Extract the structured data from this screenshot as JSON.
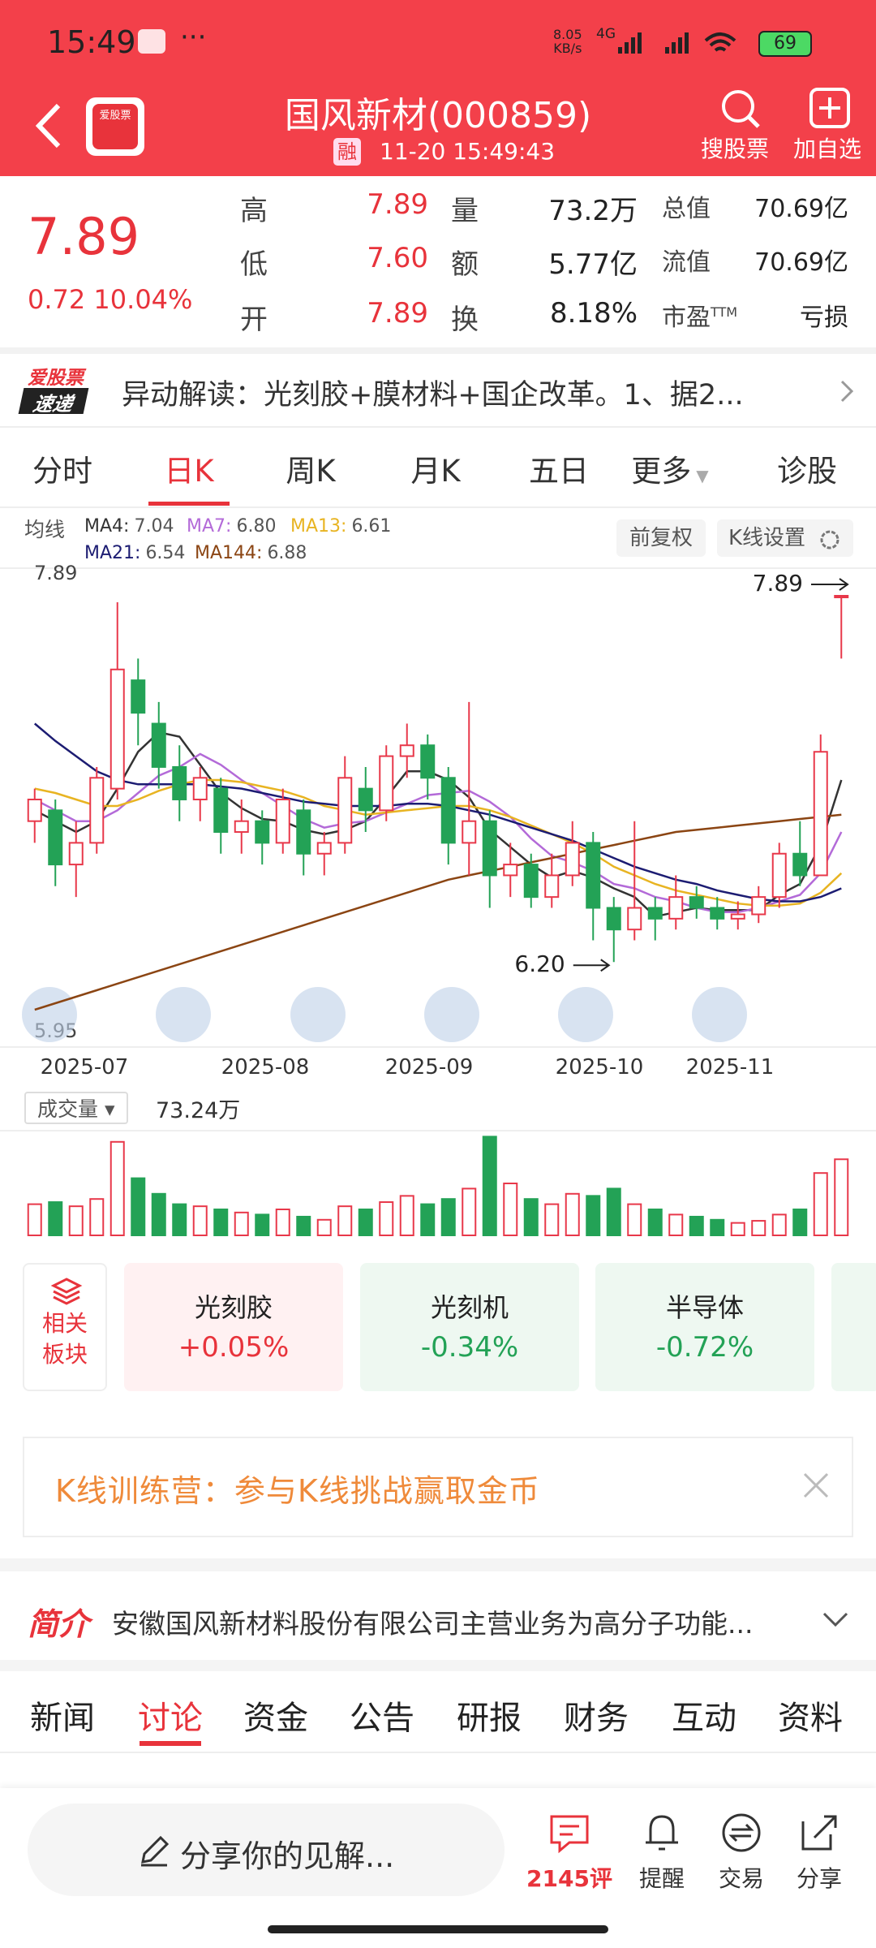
{
  "status_bar": {
    "time": "15:49",
    "speed": "8.05",
    "speed_unit": "KB/s",
    "network": "4G",
    "battery": "69"
  },
  "header": {
    "title": "国风新材(000859)",
    "badge": "融",
    "timestamp": "11-20 15:49:43",
    "logo": "爱股票",
    "actions": [
      "搜股票",
      "加自选"
    ]
  },
  "quote": {
    "price": "7.89",
    "change": "0.72",
    "change_pct": "10.04%",
    "stats": [
      [
        "高",
        "7.89",
        "量",
        "73.2万",
        "总值",
        "70.69亿"
      ],
      [
        "低",
        "7.60",
        "额",
        "5.77亿",
        "流值",
        "70.69亿"
      ],
      [
        "开",
        "7.89",
        "换",
        "8.18%",
        "市盈",
        "亏损"
      ]
    ],
    "pe_suffix": "TTM"
  },
  "news": {
    "badge_top": "爱股票",
    "badge_bottom": "速递",
    "text": "异动解读：光刻胶+膜材料+国企改革。1、据2..."
  },
  "period_tabs": {
    "items": [
      "分时",
      "日K",
      "周K",
      "月K",
      "五日",
      "更多",
      "诊股"
    ],
    "active": 1
  },
  "kline": {
    "legend_title": "均线",
    "buttons": [
      "前复权",
      "K线设置"
    ],
    "ylim": [
      5.95,
      7.89
    ],
    "yticks": [
      5.95,
      7.89
    ],
    "annotations": [
      7.89,
      {
        "value": 6.2,
        "label": "6.20"
      }
    ],
    "dates": [
      "2025-07",
      "2025-08",
      "2025-09",
      "2025-10",
      "2025-11"
    ],
    "candles": [
      [
        6.85,
        6.95,
        6.75,
        7.0
      ],
      [
        6.9,
        6.65,
        6.55,
        6.95
      ],
      [
        6.65,
        6.75,
        6.5,
        6.85
      ],
      [
        6.75,
        7.05,
        6.7,
        7.1
      ],
      [
        7.0,
        7.55,
        6.95,
        7.86
      ],
      [
        7.5,
        7.35,
        7.2,
        7.6
      ],
      [
        7.3,
        7.1,
        7.0,
        7.4
      ],
      [
        7.1,
        6.95,
        6.85,
        7.2
      ],
      [
        6.95,
        7.05,
        6.85,
        7.1
      ],
      [
        7.0,
        6.8,
        6.7,
        7.05
      ],
      [
        6.8,
        6.85,
        6.7,
        6.95
      ],
      [
        6.85,
        6.75,
        6.65,
        6.9
      ],
      [
        6.75,
        6.95,
        6.7,
        7.0
      ],
      [
        6.9,
        6.7,
        6.6,
        6.95
      ],
      [
        6.7,
        6.75,
        6.6,
        6.8
      ],
      [
        6.75,
        7.05,
        6.7,
        7.15
      ],
      [
        7.0,
        6.9,
        6.8,
        7.1
      ],
      [
        6.9,
        7.15,
        6.85,
        7.2
      ],
      [
        7.15,
        7.2,
        7.05,
        7.3
      ],
      [
        7.2,
        7.05,
        6.95,
        7.25
      ],
      [
        7.05,
        6.75,
        6.65,
        7.1
      ],
      [
        6.75,
        6.85,
        6.6,
        7.4
      ],
      [
        6.85,
        6.6,
        6.45,
        6.9
      ],
      [
        6.6,
        6.65,
        6.5,
        6.75
      ],
      [
        6.65,
        6.5,
        6.45,
        6.7
      ],
      [
        6.5,
        6.6,
        6.45,
        6.7
      ],
      [
        6.6,
        6.75,
        6.55,
        6.85
      ],
      [
        6.75,
        6.45,
        6.3,
        6.8
      ],
      [
        6.45,
        6.35,
        6.2,
        6.5
      ],
      [
        6.35,
        6.45,
        6.3,
        6.85
      ],
      [
        6.45,
        6.4,
        6.3,
        6.5
      ],
      [
        6.4,
        6.5,
        6.35,
        6.6
      ],
      [
        6.5,
        6.45,
        6.4,
        6.55
      ],
      [
        6.45,
        6.4,
        6.35,
        6.5
      ],
      [
        6.4,
        6.42,
        6.35,
        6.48
      ],
      [
        6.42,
        6.5,
        6.38,
        6.55
      ],
      [
        6.5,
        6.7,
        6.45,
        6.75
      ],
      [
        6.7,
        6.6,
        6.55,
        6.85
      ],
      [
        6.6,
        7.17,
        6.6,
        7.25
      ],
      [
        7.89,
        7.89,
        7.6,
        7.89
      ]
    ],
    "ma": [
      {
        "name": "MA4:",
        "current": 7.04,
        "color": "#333333",
        "values": [
          6.9,
          6.85,
          6.8,
          6.85,
          7.0,
          7.17,
          7.26,
          7.24,
          7.11,
          6.98,
          6.91,
          6.86,
          6.85,
          6.81,
          6.79,
          6.81,
          6.85,
          6.96,
          7.08,
          7.08,
          7.04,
          6.96,
          6.81,
          6.73,
          6.65,
          6.59,
          6.62,
          6.59,
          6.54,
          6.5,
          6.41,
          6.43,
          6.45,
          6.44,
          6.44,
          6.44,
          6.51,
          6.56,
          6.74,
          7.04
        ]
      },
      {
        "name": "MA7:",
        "current": 6.8,
        "label": "6.80",
        "color": "#b36ad8",
        "values": [
          6.95,
          6.9,
          6.85,
          6.85,
          6.9,
          6.98,
          7.06,
          7.1,
          7.16,
          7.11,
          7.04,
          6.98,
          6.92,
          6.86,
          6.82,
          6.84,
          6.85,
          6.89,
          6.93,
          6.97,
          6.98,
          6.99,
          6.94,
          6.87,
          6.77,
          6.69,
          6.66,
          6.62,
          6.56,
          6.54,
          6.5,
          6.48,
          6.45,
          6.43,
          6.43,
          6.45,
          6.48,
          6.51,
          6.61,
          6.8
        ]
      },
      {
        "name": "MA13:",
        "current": 6.61,
        "color": "#e8b422",
        "values": [
          7.0,
          6.98,
          6.95,
          6.92,
          6.92,
          6.95,
          6.99,
          7.02,
          7.04,
          7.04,
          7.03,
          7.01,
          6.99,
          6.96,
          6.92,
          6.9,
          6.88,
          6.89,
          6.9,
          6.91,
          6.92,
          6.92,
          6.9,
          6.87,
          6.83,
          6.79,
          6.75,
          6.7,
          6.64,
          6.6,
          6.56,
          6.53,
          6.51,
          6.49,
          6.47,
          6.46,
          6.46,
          6.47,
          6.52,
          6.61
        ]
      },
      {
        "name": "MA21:",
        "current": 6.54,
        "color": "#1c1c72",
        "values": [
          7.3,
          7.22,
          7.15,
          7.08,
          7.04,
          7.02,
          7.02,
          7.02,
          7.02,
          7.01,
          7.0,
          6.98,
          6.96,
          6.94,
          6.93,
          6.92,
          6.92,
          6.92,
          6.93,
          6.93,
          6.92,
          6.9,
          6.88,
          6.85,
          6.82,
          6.79,
          6.76,
          6.72,
          6.68,
          6.64,
          6.61,
          6.58,
          6.56,
          6.53,
          6.51,
          6.49,
          6.48,
          6.48,
          6.5,
          6.54
        ]
      },
      {
        "name": "MA144:",
        "current": 6.88,
        "color": "#8b4513",
        "values": [
          5.98,
          6.01,
          6.04,
          6.07,
          6.1,
          6.13,
          6.16,
          6.19,
          6.22,
          6.25,
          6.28,
          6.31,
          6.34,
          6.37,
          6.4,
          6.43,
          6.46,
          6.49,
          6.52,
          6.55,
          6.58,
          6.6,
          6.62,
          6.64,
          6.66,
          6.68,
          6.7,
          6.72,
          6.74,
          6.76,
          6.78,
          6.8,
          6.81,
          6.82,
          6.83,
          6.84,
          6.85,
          6.86,
          6.87,
          6.88
        ]
      }
    ]
  },
  "volume": {
    "selector": "成交量",
    "current": "73.24万",
    "ylim": [
      0,
      100
    ],
    "values": [
      30,
      32,
      28,
      35,
      90,
      55,
      40,
      30,
      28,
      25,
      22,
      20,
      25,
      18,
      15,
      28,
      25,
      32,
      38,
      30,
      35,
      45,
      95,
      50,
      35,
      30,
      40,
      38,
      45,
      30,
      25,
      20,
      18,
      15,
      12,
      14,
      20,
      25,
      60,
      73.24
    ]
  },
  "sectors": {
    "title": [
      "相关",
      "板块"
    ],
    "items": [
      {
        "name": "光刻胶",
        "change": "+0.05%"
      },
      {
        "name": "光刻机",
        "change": "-0.34%"
      },
      {
        "name": "半导体",
        "change": "-0.72%"
      }
    ]
  },
  "banner": {
    "text": "K线训练营：参与K线挑战赢取金币"
  },
  "intro": {
    "badge": "简介",
    "text": "安徽国风新材料股份有限公司主营业务为高分子功能..."
  },
  "content_tabs": {
    "items": [
      "新闻",
      "讨论",
      "资金",
      "公告",
      "研报",
      "财务",
      "互动",
      "资料"
    ],
    "active": 1
  },
  "bottom_bar": {
    "placeholder": "分享你的见解...",
    "actions": [
      "2145评",
      "提醒",
      "交易",
      "分享"
    ]
  }
}
